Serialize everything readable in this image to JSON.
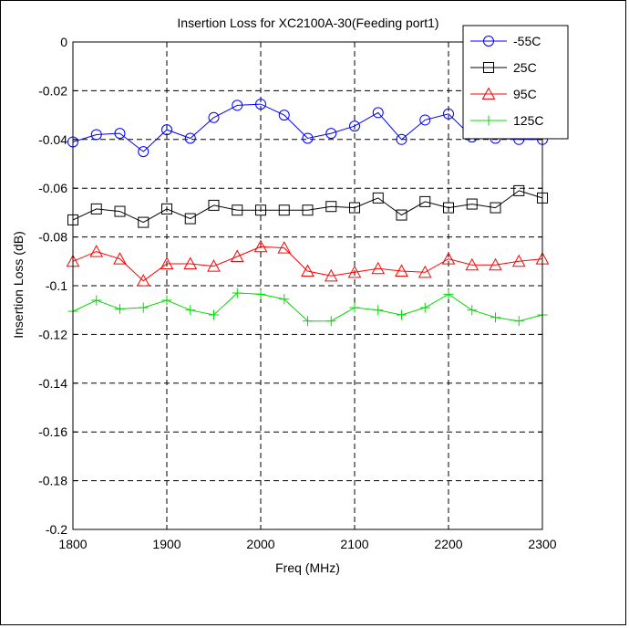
{
  "chart_data": {
    "type": "line",
    "title": "Insertion Loss for XC2100A-30(Feeding port1)",
    "xlabel": "Freq (MHz)",
    "ylabel": "Insertion Loss (dB)",
    "xlim": [
      1800,
      2300
    ],
    "ylim": [
      -0.2,
      0
    ],
    "xticks": [
      1800,
      1900,
      2000,
      2100,
      2200,
      2300
    ],
    "yticks": [
      0,
      -0.02,
      -0.04,
      -0.06,
      -0.08,
      -0.1,
      -0.12,
      -0.14,
      -0.16,
      -0.18,
      -0.2
    ],
    "grid": true,
    "legend_position": "top-right",
    "x": [
      1800,
      1825,
      1850,
      1875,
      1900,
      1925,
      1950,
      1975,
      2000,
      2025,
      2050,
      2075,
      2100,
      2125,
      2150,
      2175,
      2200,
      2225,
      2250,
      2275,
      2300
    ],
    "series": [
      {
        "name": "-55C",
        "color": "#0000ff",
        "marker": "circle",
        "values": [
          -0.041,
          -0.038,
          -0.0375,
          -0.045,
          -0.036,
          -0.0395,
          -0.031,
          -0.026,
          -0.0255,
          -0.03,
          -0.0395,
          -0.0375,
          -0.0345,
          -0.029,
          -0.04,
          -0.032,
          -0.0295,
          -0.039,
          -0.0395,
          -0.04,
          -0.04
        ]
      },
      {
        "name": "25C",
        "color": "#000000",
        "marker": "square",
        "values": [
          -0.073,
          -0.0685,
          -0.0695,
          -0.074,
          -0.0685,
          -0.0725,
          -0.067,
          -0.069,
          -0.069,
          -0.069,
          -0.069,
          -0.0675,
          -0.068,
          -0.064,
          -0.071,
          -0.0655,
          -0.068,
          -0.0665,
          -0.068,
          -0.061,
          -0.064
        ]
      },
      {
        "name": "95C",
        "color": "#ff0000",
        "marker": "triangle",
        "values": [
          -0.09,
          -0.086,
          -0.089,
          -0.098,
          -0.091,
          -0.091,
          -0.092,
          -0.088,
          -0.084,
          -0.0845,
          -0.094,
          -0.096,
          -0.0945,
          -0.093,
          -0.094,
          -0.0945,
          -0.089,
          -0.0915,
          -0.0915,
          -0.09,
          -0.089
        ]
      },
      {
        "name": "125C",
        "color": "#00dd00",
        "marker": "plus",
        "values": [
          -0.1105,
          -0.106,
          -0.1095,
          -0.109,
          -0.106,
          -0.11,
          -0.112,
          -0.103,
          -0.1035,
          -0.1055,
          -0.1145,
          -0.1145,
          -0.109,
          -0.11,
          -0.112,
          -0.109,
          -0.1035,
          -0.11,
          -0.113,
          -0.1145,
          -0.112
        ]
      }
    ]
  }
}
